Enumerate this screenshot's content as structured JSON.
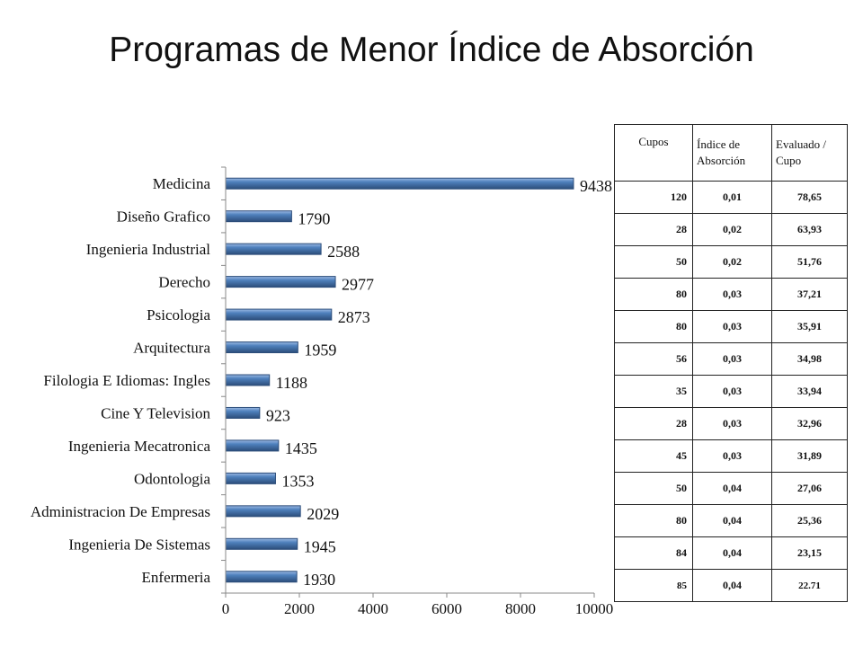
{
  "title": "Programas de Menor Índice de Absorción",
  "colors": {
    "bar": "#4f81bd",
    "bar_dark": "#2c4d7a",
    "bar_light": "#9cb9e3",
    "axis": "#888888"
  },
  "chart_data": {
    "type": "bar",
    "orientation": "horizontal",
    "categories": [
      "Medicina",
      "Diseño Grafico",
      "Ingenieria Industrial",
      "Derecho",
      "Psicologia",
      "Arquitectura",
      "Filologia E Idiomas: Ingles",
      "Cine Y Television",
      "Ingenieria Mecatronica",
      "Odontologia",
      "Administracion De Empresas",
      "Ingenieria De Sistemas",
      "Enfermeria"
    ],
    "values": [
      9438,
      1790,
      2588,
      2977,
      2873,
      1959,
      1188,
      923,
      1435,
      1353,
      2029,
      1945,
      1930
    ],
    "xlim": [
      0,
      10000
    ],
    "xticks": [
      0,
      2000,
      4000,
      6000,
      8000,
      10000
    ],
    "xlabel": "",
    "ylabel": "",
    "grid": false,
    "legend": "none"
  },
  "table": {
    "headers": [
      "Cupos",
      "Índice de Absorción",
      "Evaluado / Cupo"
    ],
    "rows": [
      [
        "120",
        "0,01",
        "78,65"
      ],
      [
        "28",
        "0,02",
        "63,93"
      ],
      [
        "50",
        "0,02",
        "51,76"
      ],
      [
        "80",
        "0,03",
        "37,21"
      ],
      [
        "80",
        "0,03",
        "35,91"
      ],
      [
        "56",
        "0,03",
        "34,98"
      ],
      [
        "35",
        "0,03",
        "33,94"
      ],
      [
        "28",
        "0,03",
        "32,96"
      ],
      [
        "45",
        "0,03",
        "31,89"
      ],
      [
        "50",
        "0,04",
        "27,06"
      ],
      [
        "80",
        "0,04",
        "25,36"
      ],
      [
        "84",
        "0,04",
        "23,15"
      ],
      [
        "85",
        "0,04",
        "22.71"
      ]
    ]
  }
}
